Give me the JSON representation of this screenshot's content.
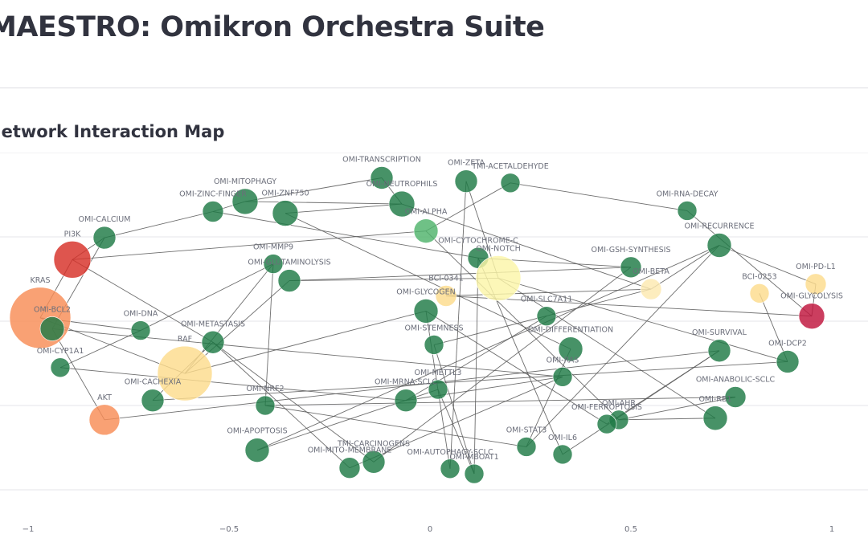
{
  "app": {
    "title": "MAESTRO: Omikron Orchestra Suite"
  },
  "section": {
    "title": "Network Interaction Map"
  },
  "colors": {
    "green": "#1f7a45",
    "light_green": "#4fb36b",
    "dark_red": "#c0143c",
    "red": "#d73027",
    "orange": "#f88c55",
    "light_orange": "#fddc8c",
    "pale_yellow": "#fbf5a8",
    "pale_orange": "#fde9b0",
    "edge": "#555555",
    "grid": "#e5e6ea"
  },
  "chart_data": {
    "type": "scatter",
    "title": "Network Interaction Map",
    "xlabel": "",
    "ylabel": "",
    "xlim": [
      -1.07,
      1.09
    ],
    "ylim": [
      -2.0,
      2.0
    ],
    "xticks": [
      -1,
      -0.5,
      0,
      0.5,
      1
    ],
    "xtick_labels": [
      "−1",
      "−0.5",
      "0",
      "0.5",
      "1"
    ],
    "yticks": [
      -2,
      -1,
      0,
      1,
      2
    ],
    "nodes": [
      {
        "id": "KRAS",
        "x": -0.97,
        "y": 0.04,
        "size": 38,
        "color": "orange"
      },
      {
        "id": "PI3K",
        "x": -0.89,
        "y": 0.73,
        "size": 23,
        "color": "red"
      },
      {
        "id": "OMI-CALCIUM",
        "x": -0.81,
        "y": 0.99,
        "size": 14,
        "color": "green"
      },
      {
        "id": "OMI-BCL2",
        "x": -0.94,
        "y": -0.09,
        "size": 15,
        "color": "green"
      },
      {
        "id": "OMI-CYP1A1",
        "x": -0.92,
        "y": -0.55,
        "size": 12,
        "color": "green"
      },
      {
        "id": "AKT",
        "x": -0.81,
        "y": -1.17,
        "size": 19,
        "color": "orange"
      },
      {
        "id": "OMI-DNA",
        "x": -0.72,
        "y": -0.11,
        "size": 12,
        "color": "green"
      },
      {
        "id": "RAF",
        "x": -0.61,
        "y": -0.62,
        "size": 34,
        "color": "light_orange"
      },
      {
        "id": "OMI-CACHEXIA",
        "x": -0.69,
        "y": -0.94,
        "size": 14,
        "color": "green"
      },
      {
        "id": "OMI-METASTASIS",
        "x": -0.54,
        "y": -0.25,
        "size": 14,
        "color": "green"
      },
      {
        "id": "OMI-MMP9",
        "x": -0.39,
        "y": 0.68,
        "size": 12,
        "color": "green"
      },
      {
        "id": "OMI-GLUTAMINOLYSIS",
        "x": -0.35,
        "y": 0.48,
        "size": 14,
        "color": "green"
      },
      {
        "id": "OMI-ZINC-FINGER",
        "x": -0.54,
        "y": 1.3,
        "size": 13,
        "color": "green"
      },
      {
        "id": "OMI-MITOPHAGY",
        "x": -0.46,
        "y": 1.42,
        "size": 16,
        "color": "green"
      },
      {
        "id": "OMI-ZNF750",
        "x": -0.36,
        "y": 1.28,
        "size": 16,
        "color": "green"
      },
      {
        "id": "OMI-TRANSCRIPTION",
        "x": -0.12,
        "y": 1.7,
        "size": 14,
        "color": "green"
      },
      {
        "id": "OMI-NEUTROPHILS",
        "x": -0.07,
        "y": 1.39,
        "size": 16,
        "color": "green"
      },
      {
        "id": "OMI-ZETA",
        "x": 0.09,
        "y": 1.66,
        "size": 14,
        "color": "green"
      },
      {
        "id": "TMI-ACETALDEHYDE",
        "x": 0.2,
        "y": 1.64,
        "size": 12,
        "color": "green"
      },
      {
        "id": "OMI-ALPHA",
        "x": -0.01,
        "y": 1.07,
        "size": 15,
        "color": "light_green"
      },
      {
        "id": "OMI-CYTOCHROME-C",
        "x": 0.12,
        "y": 0.75,
        "size": 13,
        "color": "green"
      },
      {
        "id": "OMI-NOTCH",
        "x": 0.17,
        "y": 0.51,
        "size": 28,
        "color": "pale_yellow"
      },
      {
        "id": "BCI-0341",
        "x": 0.04,
        "y": 0.3,
        "size": 13,
        "color": "light_orange"
      },
      {
        "id": "OMI-GLYCOGEN",
        "x": -0.01,
        "y": 0.12,
        "size": 15,
        "color": "green"
      },
      {
        "id": "OMI-SLC7A11",
        "x": 0.29,
        "y": 0.06,
        "size": 12,
        "color": "green"
      },
      {
        "id": "OMI-STEMNESS",
        "x": 0.01,
        "y": -0.28,
        "size": 12,
        "color": "green"
      },
      {
        "id": "OMI-DIFFERENTIATION",
        "x": 0.35,
        "y": -0.33,
        "size": 15,
        "color": "green"
      },
      {
        "id": "OMI-RAS",
        "x": 0.33,
        "y": -0.66,
        "size": 12,
        "color": "green"
      },
      {
        "id": "OMI-METTL3",
        "x": 0.02,
        "y": -0.81,
        "size": 12,
        "color": "green"
      },
      {
        "id": "OMI-MRNA-SCLC",
        "x": -0.06,
        "y": -0.94,
        "size": 14,
        "color": "green"
      },
      {
        "id": "OMI-GSH-SYNTHESIS",
        "x": 0.5,
        "y": 0.64,
        "size": 13,
        "color": "green"
      },
      {
        "id": "OMI-BETA",
        "x": 0.55,
        "y": 0.38,
        "size": 13,
        "color": "pale_orange"
      },
      {
        "id": "OMI-RNA-DECAY",
        "x": 0.64,
        "y": 1.31,
        "size": 12,
        "color": "green"
      },
      {
        "id": "OMI-RECURRENCE",
        "x": 0.72,
        "y": 0.9,
        "size": 15,
        "color": "green"
      },
      {
        "id": "BCI-0253",
        "x": 0.82,
        "y": 0.33,
        "size": 12,
        "color": "light_orange"
      },
      {
        "id": "OMI-PD-L1",
        "x": 0.96,
        "y": 0.44,
        "size": 13,
        "color": "light_orange"
      },
      {
        "id": "OMI-GLYCOLYSIS",
        "x": 0.95,
        "y": 0.06,
        "size": 16,
        "color": "dark_red"
      },
      {
        "id": "OMI-SURVIVAL",
        "x": 0.72,
        "y": -0.35,
        "size": 14,
        "color": "green"
      },
      {
        "id": "OMI-DCP2",
        "x": 0.89,
        "y": -0.48,
        "size": 14,
        "color": "green"
      },
      {
        "id": "OMI-ANABOLIC-SCLC",
        "x": 0.76,
        "y": -0.9,
        "size": 13,
        "color": "green"
      },
      {
        "id": "OMI-AHR",
        "x": 0.47,
        "y": -1.17,
        "size": 12,
        "color": "green"
      },
      {
        "id": "OMI-FERROPTOSIS",
        "x": 0.44,
        "y": -1.22,
        "size": 12,
        "color": "green"
      },
      {
        "id": "OMI-RB1",
        "x": 0.71,
        "y": -1.15,
        "size": 15,
        "color": "green"
      },
      {
        "id": "OMI-NRF2",
        "x": -0.41,
        "y": -1.0,
        "size": 12,
        "color": "green"
      },
      {
        "id": "OMI-APOPTOSIS",
        "x": -0.43,
        "y": -1.53,
        "size": 15,
        "color": "green"
      },
      {
        "id": "OMI-MITO-MEMBRANE",
        "x": -0.2,
        "y": -1.74,
        "size": 13,
        "color": "green"
      },
      {
        "id": "TMI-CARCINOGENS",
        "x": -0.14,
        "y": -1.67,
        "size": 14,
        "color": "green"
      },
      {
        "id": "OMI-AUTOPHAGY-SCLC",
        "x": 0.05,
        "y": -1.75,
        "size": 12,
        "color": "green"
      },
      {
        "id": "OMI-MBOAT1",
        "x": 0.11,
        "y": -1.81,
        "size": 12,
        "color": "green"
      },
      {
        "id": "OMI-STAT3",
        "x": 0.24,
        "y": -1.49,
        "size": 12,
        "color": "green"
      },
      {
        "id": "OMI-IL6",
        "x": 0.33,
        "y": -1.58,
        "size": 12,
        "color": "green"
      }
    ],
    "edges": [
      [
        "KRAS",
        "PI3K"
      ],
      [
        "KRAS",
        "OMI-DNA"
      ],
      [
        "PI3K",
        "OMI-CALCIUM"
      ],
      [
        "PI3K",
        "OMI-ALPHA"
      ],
      [
        "OMI-CALCIUM",
        "OMI-ZINC-FINGER"
      ],
      [
        "PI3K",
        "OMI-METASTASIS"
      ],
      [
        "OMI-BCL2",
        "OMI-CALCIUM"
      ],
      [
        "OMI-BCL2",
        "OMI-RAS"
      ],
      [
        "OMI-CYP1A1",
        "OMI-MRNA-SCLC"
      ],
      [
        "OMI-CYP1A1",
        "OMI-DNA"
      ],
      [
        "AKT",
        "OMI-BCL2"
      ],
      [
        "AKT",
        "OMI-SURVIVAL"
      ],
      [
        "OMI-DNA",
        "OMI-MMP9"
      ],
      [
        "RAF",
        "KRAS"
      ],
      [
        "RAF",
        "OMI-MMP9"
      ],
      [
        "RAF",
        "OMI-GLYCOGEN"
      ],
      [
        "RAF",
        "OMI-GLUTAMINOLYSIS"
      ],
      [
        "OMI-CACHEXIA",
        "OMI-METASTASIS"
      ],
      [
        "OMI-CACHEXIA",
        "OMI-DCP2"
      ],
      [
        "OMI-METASTASIS",
        "OMI-MITO-MEMBRANE"
      ],
      [
        "OMI-MMP9",
        "OMI-NRF2"
      ],
      [
        "OMI-GLUTAMINOLYSIS",
        "OMI-NOTCH"
      ],
      [
        "OMI-GLUTAMINOLYSIS",
        "OMI-GSH-SYNTHESIS"
      ],
      [
        "OMI-ZINC-FINGER",
        "OMI-MITOPHAGY"
      ],
      [
        "OMI-ZINC-FINGER",
        "OMI-CYTOCHROME-C"
      ],
      [
        "OMI-MITOPHAGY",
        "OMI-NEUTROPHILS"
      ],
      [
        "OMI-MITOPHAGY",
        "OMI-TRANSCRIPTION"
      ],
      [
        "OMI-ZNF750",
        "OMI-NEUTROPHILS"
      ],
      [
        "OMI-ZNF750",
        "OMI-DIFFERENTIATION"
      ],
      [
        "OMI-TRANSCRIPTION",
        "OMI-NEUTROPHILS"
      ],
      [
        "OMI-NEUTROPHILS",
        "OMI-BETA"
      ],
      [
        "OMI-ZETA",
        "OMI-NOTCH"
      ],
      [
        "TMI-ACETALDEHYDE",
        "OMI-RNA-DECAY"
      ],
      [
        "TMI-ACETALDEHYDE",
        "OMI-ALPHA"
      ],
      [
        "OMI-ALPHA",
        "OMI-AHR"
      ],
      [
        "OMI-CYTOCHROME-C",
        "OMI-IL6"
      ],
      [
        "OMI-NOTCH",
        "OMI-RB1"
      ],
      [
        "BCI-0341",
        "OMI-GLYCOLYSIS"
      ],
      [
        "BCI-0341",
        "OMI-BETA"
      ],
      [
        "OMI-GLYCOGEN",
        "OMI-AUTOPHAGY-SCLC"
      ],
      [
        "OMI-GLYCOGEN",
        "OMI-FERROPTOSIS"
      ],
      [
        "OMI-SLC7A11",
        "OMI-MRNA-SCLC"
      ],
      [
        "OMI-STEMNESS",
        "OMI-BETA"
      ],
      [
        "OMI-STEMNESS",
        "OMI-MBOAT1"
      ],
      [
        "OMI-DIFFERENTIATION",
        "OMI-STAT3"
      ],
      [
        "OMI-RAS",
        "OMI-MITO-MEMBRANE"
      ],
      [
        "OMI-METTL3",
        "OMI-APOPTOSIS"
      ],
      [
        "OMI-METTL3",
        "OMI-MBOAT1"
      ],
      [
        "OMI-MRNA-SCLC",
        "OMI-RAS"
      ],
      [
        "OMI-GSH-SYNTHESIS",
        "OMI-CYTOCHROME-C"
      ],
      [
        "OMI-GSH-SYNTHESIS",
        "TMI-CARCINOGENS"
      ],
      [
        "OMI-RNA-DECAY",
        "OMI-GLYCOLYSIS"
      ],
      [
        "OMI-RECURRENCE",
        "OMI-BETA"
      ],
      [
        "OMI-RECURRENCE",
        "OMI-PD-L1"
      ],
      [
        "OMI-RECURRENCE",
        "OMI-STAT3"
      ],
      [
        "BCI-0253",
        "OMI-DCP2"
      ],
      [
        "OMI-PD-L1",
        "OMI-GLYCOLYSIS"
      ],
      [
        "OMI-SURVIVAL",
        "OMI-IL6"
      ],
      [
        "OMI-SURVIVAL",
        "OMI-FERROPTOSIS"
      ],
      [
        "OMI-ANABOLIC-SCLC",
        "OMI-AHR"
      ],
      [
        "OMI-ANABOLIC-SCLC",
        "OMI-NRF2"
      ],
      [
        "OMI-AHR",
        "OMI-RB1"
      ],
      [
        "OMI-NRF2",
        "OMI-STAT3"
      ],
      [
        "OMI-APOPTOSIS",
        "OMI-RECURRENCE"
      ],
      [
        "TMI-CARCINOGENS",
        "OMI-METASTASIS"
      ],
      [
        "OMI-AUTOPHAGY-SCLC",
        "OMI-ZETA"
      ],
      [
        "OMI-MBOAT1",
        "OMI-CYTOCHROME-C"
      ],
      [
        "OMI-DCP2",
        "OMI-NOTCH"
      ]
    ]
  }
}
